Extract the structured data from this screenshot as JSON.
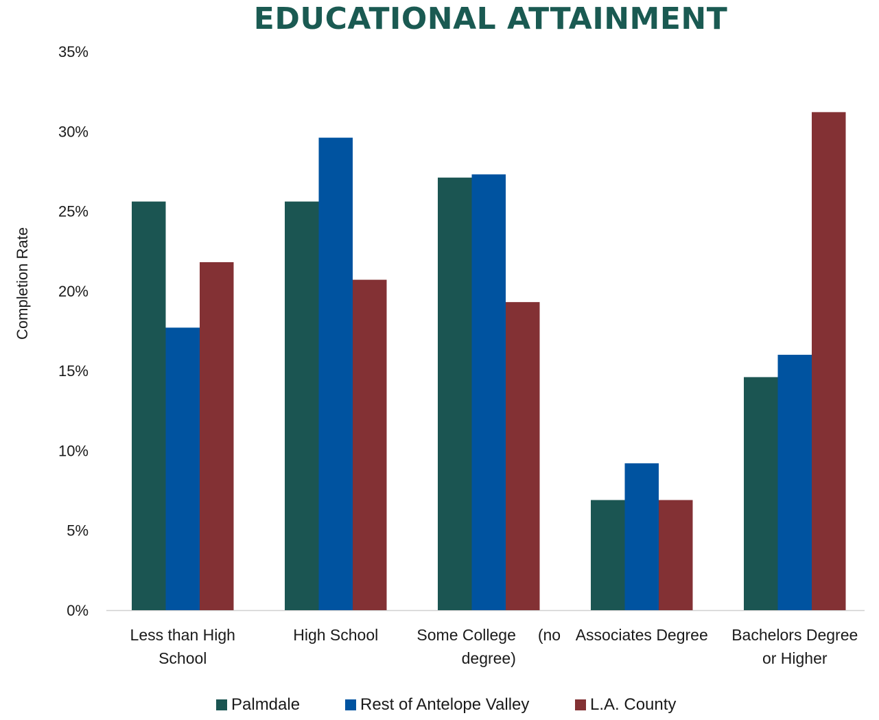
{
  "chart_data": {
    "type": "bar",
    "title": "EDUCATIONAL ATTAINMENT",
    "xlabel": "",
    "ylabel": "Completion Rate",
    "ylim": [
      0,
      35
    ],
    "yticks": [
      "0%",
      "5%",
      "10%",
      "15%",
      "20%",
      "25%",
      "30%",
      "35%"
    ],
    "categories": [
      [
        "Less than High",
        "School"
      ],
      [
        "High School"
      ],
      [
        "Some College     (no",
        "degree)"
      ],
      [
        "Associates Degree"
      ],
      [
        "Bachelors Degree",
        "or Higher"
      ]
    ],
    "series": [
      {
        "name": "Palmdale",
        "color": "#1b5552",
        "values": [
          25.6,
          25.6,
          27.1,
          6.9,
          14.6
        ]
      },
      {
        "name": "Rest of Antelope Valley",
        "color": "#0053a0",
        "values": [
          17.7,
          29.6,
          27.3,
          9.2,
          16.0
        ]
      },
      {
        "name": "L.A. County",
        "color": "#833134",
        "values": [
          21.8,
          20.7,
          19.3,
          6.9,
          31.2
        ]
      }
    ],
    "grid": false,
    "legend_position": "bottom"
  }
}
